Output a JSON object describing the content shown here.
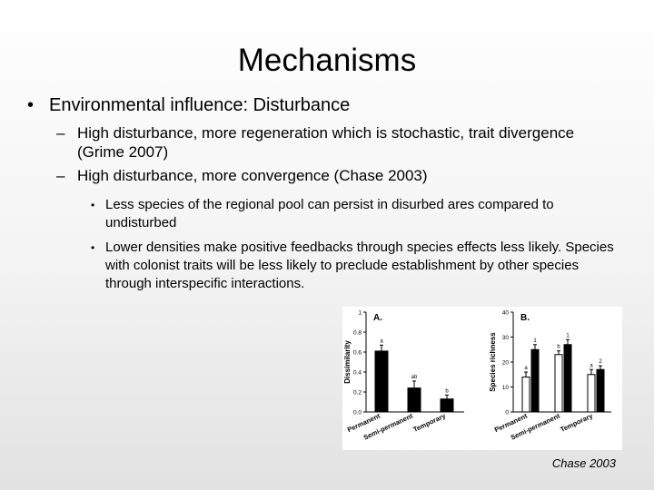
{
  "slide": {
    "title": "Mechanisms",
    "bullet1": "Environmental influence: Disturbance",
    "sub1": "High disturbance, more regeneration which is stochastic, trait divergence (Grime 2007)",
    "sub2": "High disturbance, more convergence (Chase 2003)",
    "subsub1": "Less species of the regional pool can persist in disurbed ares compared to undisturbed",
    "subsub2": "Lower densities make positive feedbacks through species effects less likely. Species with colonist traits will be less likely to preclude establishment by other species through interspecific interactions.",
    "citation": "Chase 2003",
    "bullet_glyph": "•",
    "dash_glyph": "–"
  },
  "chart_data": [
    {
      "type": "bar",
      "panel_label": "A.",
      "ylabel": "Dissimilarity",
      "categories": [
        "Permanent",
        "Semi-permanent",
        "Temporary"
      ],
      "ylim": [
        0,
        1
      ],
      "yticks": [
        "0.0",
        "0.2",
        "0.4",
        "0.6",
        "0.8",
        "1"
      ],
      "series": [
        {
          "values": [
            0.61,
            0.24,
            0.13
          ],
          "errors": [
            0.06,
            0.07,
            0.04
          ],
          "color": "#000000"
        }
      ],
      "significance_letters": [
        "a",
        "ab",
        "b"
      ]
    },
    {
      "type": "bar",
      "panel_label": "B.",
      "ylabel": "Species richness",
      "categories": [
        "Permanent",
        "Semi-permanent",
        "Temporary"
      ],
      "ylim": [
        0,
        40
      ],
      "yticks": [
        "0",
        "10",
        "20",
        "30",
        "40"
      ],
      "series": [
        {
          "values": [
            14,
            23,
            15
          ],
          "errors": [
            2,
            1.5,
            2
          ],
          "color": "#ffffff"
        },
        {
          "values": [
            25,
            27,
            17
          ],
          "errors": [
            2,
            2,
            1.5
          ],
          "color": "#000000"
        }
      ],
      "significance_letters": [
        [
          "a",
          "1"
        ],
        [
          "b",
          "1"
        ],
        [
          "a",
          "2"
        ]
      ]
    }
  ]
}
